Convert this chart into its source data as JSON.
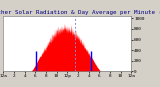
{
  "title": "Milwaukee Weather Solar Radiation & Day Average per Minute (Today)",
  "bg_color": "#d4d0c8",
  "plot_bg_color": "#ffffff",
  "bar_color": "#ff0000",
  "avg_line_color": "#0000ff",
  "dashed_line_color": "#8888cc",
  "title_color": "#000080",
  "title_fontsize": 4.2,
  "tick_fontsize": 3.2,
  "num_points": 1440,
  "peak_minute": 690,
  "peak_value": 950,
  "start_minute": 310,
  "end_minute": 1100,
  "ylim": [
    0,
    1050
  ],
  "xlim": [
    0,
    1440
  ],
  "blue_line1_x": 370,
  "blue_line2_x": 990,
  "blue_line_ymax": 380,
  "dashed_line_x": 810,
  "x_ticks": [
    0,
    120,
    240,
    360,
    480,
    600,
    720,
    840,
    960,
    1080,
    1200,
    1320,
    1440
  ],
  "x_tick_labels": [
    "12a",
    "2",
    "4",
    "6",
    "8",
    "10",
    "12p",
    "2",
    "4",
    "6",
    "8",
    "10",
    "12a"
  ],
  "y_ticks": [
    0,
    200,
    400,
    600,
    800,
    1000
  ],
  "y_tick_labels": [
    "0",
    "200",
    "400",
    "600",
    "800",
    "1000"
  ]
}
